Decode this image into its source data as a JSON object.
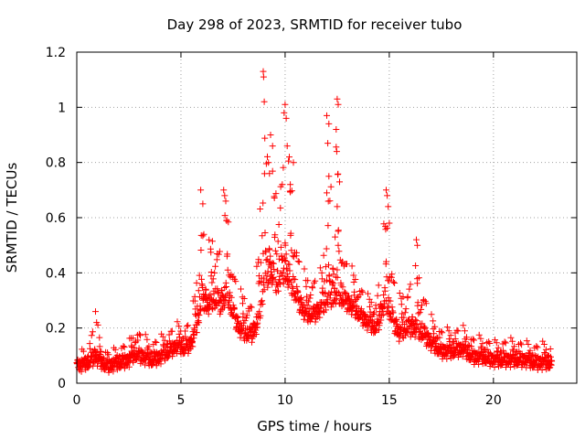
{
  "chart_data": {
    "type": "scatter",
    "title": "Day 298 of 2023, SRMTID for receiver tubo",
    "xlabel": "GPS time / hours",
    "ylabel": "SRMTID / TECUs",
    "xlim": [
      0,
      24
    ],
    "ylim": [
      0,
      1.2
    ],
    "x_ticks": [
      0,
      5,
      10,
      15,
      20
    ],
    "x_tick_labels": [
      "0",
      "5",
      "10",
      "15",
      "20"
    ],
    "y_ticks": [
      0,
      0.2,
      0.4,
      0.6,
      0.8,
      1.0,
      1.2
    ],
    "y_tick_labels": [
      "0",
      "0.2",
      "0.4",
      "0.6",
      "0.8",
      "1",
      "1.2"
    ],
    "grid": true,
    "legend": "none",
    "marker": "plus",
    "color": "#ff0000",
    "profile_note": "approximate envelope read from the plot: x in hours, [typical value, upper spread]",
    "profile": [
      [
        0.0,
        0.07,
        0.04
      ],
      [
        0.5,
        0.08,
        0.04
      ],
      [
        0.9,
        0.1,
        0.16
      ],
      [
        1.2,
        0.08,
        0.05
      ],
      [
        1.5,
        0.07,
        0.04
      ],
      [
        2.0,
        0.08,
        0.05
      ],
      [
        2.5,
        0.09,
        0.06
      ],
      [
        2.8,
        0.11,
        0.1
      ],
      [
        3.2,
        0.1,
        0.08
      ],
      [
        3.6,
        0.09,
        0.06
      ],
      [
        4.0,
        0.1,
        0.07
      ],
      [
        4.4,
        0.12,
        0.07
      ],
      [
        4.8,
        0.14,
        0.08
      ],
      [
        5.2,
        0.13,
        0.08
      ],
      [
        5.5,
        0.15,
        0.1
      ],
      [
        5.8,
        0.22,
        0.2
      ],
      [
        6.0,
        0.3,
        0.35
      ],
      [
        6.3,
        0.28,
        0.25
      ],
      [
        6.6,
        0.3,
        0.25
      ],
      [
        6.9,
        0.28,
        0.25
      ],
      [
        7.2,
        0.32,
        0.35
      ],
      [
        7.5,
        0.25,
        0.2
      ],
      [
        7.8,
        0.2,
        0.15
      ],
      [
        8.1,
        0.18,
        0.15
      ],
      [
        8.4,
        0.18,
        0.12
      ],
      [
        8.7,
        0.22,
        0.25
      ],
      [
        9.0,
        0.35,
        0.7
      ],
      [
        9.3,
        0.4,
        0.45
      ],
      [
        9.6,
        0.35,
        0.35
      ],
      [
        10.0,
        0.4,
        0.55
      ],
      [
        10.3,
        0.35,
        0.4
      ],
      [
        10.6,
        0.3,
        0.2
      ],
      [
        11.0,
        0.25,
        0.15
      ],
      [
        11.4,
        0.25,
        0.15
      ],
      [
        11.8,
        0.28,
        0.15
      ],
      [
        12.1,
        0.3,
        0.5
      ],
      [
        12.5,
        0.32,
        0.6
      ],
      [
        12.8,
        0.3,
        0.2
      ],
      [
        13.2,
        0.28,
        0.15
      ],
      [
        13.6,
        0.25,
        0.12
      ],
      [
        14.0,
        0.22,
        0.1
      ],
      [
        14.4,
        0.2,
        0.12
      ],
      [
        14.8,
        0.3,
        0.35
      ],
      [
        15.2,
        0.22,
        0.2
      ],
      [
        15.5,
        0.18,
        0.15
      ],
      [
        15.8,
        0.2,
        0.15
      ],
      [
        16.2,
        0.2,
        0.25
      ],
      [
        16.6,
        0.18,
        0.2
      ],
      [
        17.0,
        0.15,
        0.1
      ],
      [
        17.5,
        0.12,
        0.08
      ],
      [
        18.0,
        0.12,
        0.08
      ],
      [
        18.5,
        0.13,
        0.08
      ],
      [
        19.0,
        0.1,
        0.07
      ],
      [
        19.5,
        0.1,
        0.07
      ],
      [
        20.0,
        0.09,
        0.06
      ],
      [
        20.5,
        0.09,
        0.07
      ],
      [
        21.0,
        0.09,
        0.07
      ],
      [
        21.5,
        0.09,
        0.06
      ],
      [
        22.0,
        0.08,
        0.06
      ],
      [
        22.5,
        0.08,
        0.07
      ],
      [
        22.8,
        0.08,
        0.05
      ]
    ],
    "peaks_note": "notable isolated high points read from the plot: [x hours, y TECU]",
    "peaks": [
      [
        8.95,
        1.13
      ],
      [
        8.97,
        1.11
      ],
      [
        9.0,
        1.02
      ],
      [
        9.3,
        0.9
      ],
      [
        9.4,
        0.86
      ],
      [
        10.0,
        1.01
      ],
      [
        9.95,
        0.98
      ],
      [
        10.05,
        0.96
      ],
      [
        10.1,
        0.86
      ],
      [
        10.2,
        0.82
      ],
      [
        12.0,
        0.97
      ],
      [
        12.1,
        0.94
      ],
      [
        12.05,
        0.87
      ],
      [
        12.1,
        0.75
      ],
      [
        12.0,
        0.69
      ],
      [
        12.45,
        0.92
      ],
      [
        12.5,
        1.03
      ],
      [
        12.55,
        1.01
      ],
      [
        12.48,
        0.84
      ],
      [
        12.5,
        0.64
      ],
      [
        12.4,
        0.53
      ],
      [
        12.55,
        0.5
      ],
      [
        5.95,
        0.7
      ],
      [
        6.05,
        0.65
      ],
      [
        7.05,
        0.7
      ],
      [
        7.1,
        0.68
      ],
      [
        7.15,
        0.66
      ],
      [
        14.85,
        0.7
      ],
      [
        14.9,
        0.68
      ],
      [
        14.95,
        0.64
      ],
      [
        15.0,
        0.58
      ],
      [
        16.3,
        0.52
      ],
      [
        16.35,
        0.5
      ],
      [
        9.2,
        0.8
      ],
      [
        9.25,
        0.76
      ],
      [
        10.4,
        0.8
      ],
      [
        10.25,
        0.72
      ],
      [
        0.9,
        0.26
      ],
      [
        0.95,
        0.22
      ]
    ]
  }
}
